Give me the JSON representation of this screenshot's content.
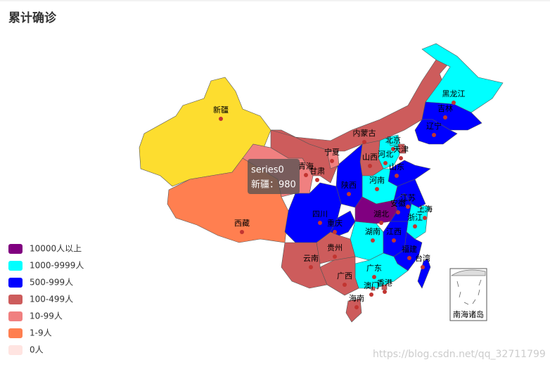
{
  "title": "累计确诊",
  "map": {
    "regions": [
      {
        "name": "新疆",
        "color": "#fddd2f"
      },
      {
        "name": "西藏",
        "color": "#ff7f50"
      },
      {
        "name": "青海",
        "color": "#f08080"
      },
      {
        "name": "甘肃",
        "color": "#cd5c5c"
      },
      {
        "name": "内蒙古",
        "color": "#cd5c5c"
      },
      {
        "name": "黑龙江",
        "color": "#00ffff"
      },
      {
        "name": "吉林",
        "color": "#0000ff"
      },
      {
        "name": "辽宁",
        "color": "#0000ff"
      },
      {
        "name": "北京",
        "color": "#00ffff"
      },
      {
        "name": "天津",
        "color": "#cd5c5c"
      },
      {
        "name": "河北",
        "color": "#00ffff"
      },
      {
        "name": "山西",
        "color": "#cd5c5c"
      },
      {
        "name": "山东",
        "color": "#0000ff"
      },
      {
        "name": "河南",
        "color": "#00ffff"
      },
      {
        "name": "陕西",
        "color": "#0000ff"
      },
      {
        "name": "宁夏",
        "color": "#f08080"
      },
      {
        "name": "四川",
        "color": "#0000ff"
      },
      {
        "name": "重庆",
        "color": "#0000ff"
      },
      {
        "name": "湖北",
        "color": "#800080"
      },
      {
        "name": "湖南",
        "color": "#00ffff"
      },
      {
        "name": "安徽",
        "color": "#0000ff"
      },
      {
        "name": "江苏",
        "color": "#0000ff"
      },
      {
        "name": "上海",
        "color": "#00ffff"
      },
      {
        "name": "浙江",
        "color": "#00ffff"
      },
      {
        "name": "江西",
        "color": "#0000ff"
      },
      {
        "name": "福建",
        "color": "#0000ff"
      },
      {
        "name": "台湾",
        "color": "#0000ff"
      },
      {
        "name": "广东",
        "color": "#00ffff"
      },
      {
        "name": "广西",
        "color": "#cd5c5c"
      },
      {
        "name": "贵州",
        "color": "#cd5c5c"
      },
      {
        "name": "云南",
        "color": "#cd5c5c"
      },
      {
        "name": "海南",
        "color": "#cd5c5c"
      },
      {
        "name": "香港",
        "color": "#cd5c5c"
      },
      {
        "name": "澳门",
        "color": "#cd5c5c"
      }
    ],
    "legend": [
      {
        "label": "10000人以上",
        "color": "#800080"
      },
      {
        "label": "1000-9999人",
        "color": "#00ffff"
      },
      {
        "label": "500-999人",
        "color": "#0000ff"
      },
      {
        "label": "100-499人",
        "color": "#cd5c5c"
      },
      {
        "label": "10-99人",
        "color": "#f08080"
      },
      {
        "label": "1-9人",
        "color": "#ff7f50"
      },
      {
        "label": "0人",
        "color": "#ffe4e1"
      }
    ],
    "tooltip": {
      "series": "series0",
      "text": "新疆：980"
    },
    "inset_label": "南海诸岛"
  },
  "watermark": "https://blog.csdn.net/qq_32711799"
}
